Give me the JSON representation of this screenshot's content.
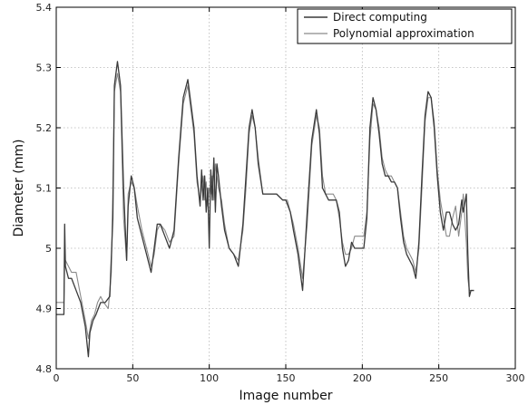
{
  "chart_data": {
    "type": "line",
    "xlabel": "Image number",
    "ylabel": "Diameter (mm)",
    "xlim": [
      0,
      300
    ],
    "ylim": [
      4.8,
      5.4
    ],
    "xticks": [
      0,
      50,
      100,
      150,
      200,
      250,
      300
    ],
    "yticks": [
      4.8,
      4.9,
      5.0,
      5.1,
      5.2,
      5.3,
      5.4
    ],
    "xtick_labels": [
      "0",
      "50",
      "100",
      "150",
      "200",
      "250",
      "300"
    ],
    "ytick_labels": [
      "4.8",
      "4.9",
      "5",
      "5.1",
      "5.2",
      "5.3",
      "5.4"
    ],
    "grid": true,
    "legend_position": "top-right",
    "series": [
      {
        "name": "Direct computing",
        "color": "#3a3a3a",
        "x": [
          0,
          5,
          5.5,
          6,
          8,
          10,
          13,
          16,
          19,
          21,
          22,
          24,
          26,
          29,
          32,
          35,
          37,
          38,
          40,
          42,
          44,
          46,
          47,
          49,
          51,
          53,
          56,
          59,
          62,
          64,
          66,
          68,
          71,
          74,
          77,
          80,
          83,
          86,
          88,
          90,
          92,
          94,
          95,
          96,
          97,
          98,
          99,
          100,
          101,
          102,
          103,
          104,
          105,
          106,
          108,
          110,
          113,
          116,
          119,
          122,
          124,
          126,
          128,
          130,
          132,
          135,
          138,
          141,
          144,
          148,
          150,
          153,
          155,
          158,
          161,
          164,
          167,
          170,
          172,
          174,
          176,
          178,
          180,
          183,
          185,
          187,
          189,
          191,
          193,
          195,
          198,
          201,
          203,
          205,
          207,
          209,
          211,
          213,
          215,
          217,
          219,
          221,
          223,
          225,
          227,
          229,
          231,
          233,
          235,
          237,
          239,
          241,
          243,
          245,
          247,
          249,
          251,
          253,
          255,
          257,
          259,
          261,
          263,
          265,
          266,
          268,
          269,
          270,
          271,
          273
        ],
        "y": [
          4.89,
          4.89,
          5.04,
          4.97,
          4.95,
          4.95,
          4.93,
          4.91,
          4.87,
          4.82,
          4.86,
          4.88,
          4.89,
          4.91,
          4.91,
          4.92,
          5.05,
          5.27,
          5.31,
          5.27,
          5.1,
          4.98,
          5.07,
          5.12,
          5.1,
          5.05,
          5.02,
          4.99,
          4.96,
          5.0,
          5.04,
          5.04,
          5.02,
          5.0,
          5.03,
          5.15,
          5.25,
          5.28,
          5.24,
          5.2,
          5.12,
          5.07,
          5.13,
          5.08,
          5.12,
          5.06,
          5.1,
          5.0,
          5.13,
          5.08,
          5.15,
          5.06,
          5.14,
          5.12,
          5.07,
          5.03,
          5.0,
          4.99,
          4.97,
          5.04,
          5.12,
          5.2,
          5.23,
          5.2,
          5.14,
          5.09,
          5.09,
          5.09,
          5.09,
          5.08,
          5.08,
          5.06,
          5.03,
          4.99,
          4.93,
          5.06,
          5.18,
          5.23,
          5.19,
          5.1,
          5.09,
          5.08,
          5.08,
          5.08,
          5.06,
          5.0,
          4.97,
          4.98,
          5.01,
          5.0,
          5.0,
          5.0,
          5.05,
          5.2,
          5.25,
          5.23,
          5.19,
          5.14,
          5.12,
          5.12,
          5.11,
          5.11,
          5.1,
          5.05,
          5.01,
          4.99,
          4.98,
          4.97,
          4.95,
          5.01,
          5.12,
          5.22,
          5.26,
          5.25,
          5.2,
          5.12,
          5.06,
          5.03,
          5.06,
          5.06,
          5.04,
          5.03,
          5.04,
          5.08,
          5.06,
          5.09,
          4.99,
          4.92,
          4.93,
          4.93
        ],
        "line_width": 1.3
      },
      {
        "name": "Polynomial approximation",
        "color": "#8a8a8a",
        "x": [
          0,
          5,
          5.5,
          6,
          8,
          10,
          13,
          16,
          19,
          21,
          23,
          25,
          27,
          29,
          31,
          34,
          36,
          37,
          38,
          40,
          42,
          44,
          46,
          47,
          49,
          51,
          53,
          56,
          59,
          62,
          64,
          66,
          68,
          71,
          74,
          77,
          80,
          83,
          86,
          88,
          90,
          92,
          94,
          95,
          96,
          97,
          98,
          99,
          100,
          101,
          102,
          103,
          104,
          106,
          108,
          110,
          113,
          116,
          119,
          122,
          124,
          126,
          128,
          130,
          132,
          135,
          138,
          141,
          144,
          148,
          151,
          153,
          155,
          158,
          161,
          164,
          167,
          170,
          172,
          174,
          176,
          178,
          181,
          183,
          185,
          187,
          189,
          191,
          193,
          195,
          198,
          201,
          203,
          205,
          207,
          209,
          211,
          213,
          215,
          217,
          219,
          221,
          223,
          225,
          227,
          229,
          231,
          233,
          235,
          237,
          239,
          241,
          243,
          245,
          247,
          249,
          251,
          253,
          255,
          257,
          259,
          261,
          263,
          265,
          266,
          268,
          269,
          270,
          271,
          273
        ],
        "y": [
          4.91,
          4.91,
          4.97,
          4.98,
          4.97,
          4.96,
          4.96,
          4.92,
          4.88,
          4.85,
          4.88,
          4.89,
          4.91,
          4.92,
          4.91,
          4.9,
          4.96,
          5.1,
          5.26,
          5.29,
          5.26,
          5.05,
          4.98,
          5.09,
          5.11,
          5.1,
          5.07,
          5.03,
          5.0,
          4.97,
          4.99,
          5.03,
          5.04,
          5.03,
          5.01,
          5.02,
          5.14,
          5.24,
          5.27,
          5.23,
          5.19,
          5.11,
          5.08,
          5.1,
          5.12,
          5.08,
          5.11,
          5.07,
          5.1,
          5.09,
          5.12,
          5.08,
          5.14,
          5.1,
          5.08,
          5.04,
          5.0,
          4.99,
          4.98,
          5.03,
          5.1,
          5.19,
          5.22,
          5.2,
          5.15,
          5.09,
          5.09,
          5.09,
          5.09,
          5.08,
          5.08,
          5.06,
          5.04,
          5.0,
          4.95,
          5.04,
          5.17,
          5.22,
          5.2,
          5.12,
          5.09,
          5.09,
          5.09,
          5.08,
          5.05,
          5.01,
          4.99,
          4.99,
          5.0,
          5.02,
          5.02,
          5.02,
          5.06,
          5.18,
          5.24,
          5.23,
          5.2,
          5.15,
          5.13,
          5.12,
          5.12,
          5.11,
          5.1,
          5.06,
          5.02,
          5.0,
          4.99,
          4.98,
          4.96,
          5.0,
          5.1,
          5.21,
          5.25,
          5.25,
          5.21,
          5.13,
          5.08,
          5.05,
          5.02,
          5.02,
          5.05,
          5.07,
          5.02,
          5.06,
          5.09,
          5.01,
          4.95,
          4.93,
          4.93,
          4.93
        ],
        "line_width": 1.1
      }
    ]
  }
}
